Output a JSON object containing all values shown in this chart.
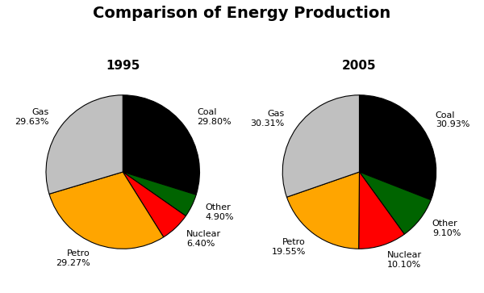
{
  "title": "Comparison of Energy Production",
  "title_fontsize": 14,
  "subtitle_fontsize": 11,
  "chart1_title": "1995",
  "chart2_title": "2005",
  "chart1_labels": [
    "Coal",
    "Gas",
    "Petro",
    "Nuclear",
    "Other"
  ],
  "chart1_values": [
    29.8,
    29.63,
    29.27,
    6.4,
    4.9
  ],
  "chart2_labels": [
    "Coal",
    "Gas",
    "Petro",
    "Nuclear",
    "Other"
  ],
  "chart2_values": [
    30.93,
    30.31,
    19.55,
    10.1,
    9.1
  ],
  "colors_order1": [
    "#000000",
    "#006400",
    "#ff0000",
    "#ffa500",
    "#c0c0c0"
  ],
  "colors_order2": [
    "#000000",
    "#006400",
    "#ff0000",
    "#ffa500",
    "#c0c0c0"
  ],
  "label_fontsize": 8,
  "background_color": "#ffffff",
  "title_color": "#000000",
  "subtitle_color": "#000000",
  "pie1_order": [
    0,
    4,
    3,
    2,
    1
  ],
  "pie2_order": [
    0,
    4,
    3,
    2,
    1
  ]
}
